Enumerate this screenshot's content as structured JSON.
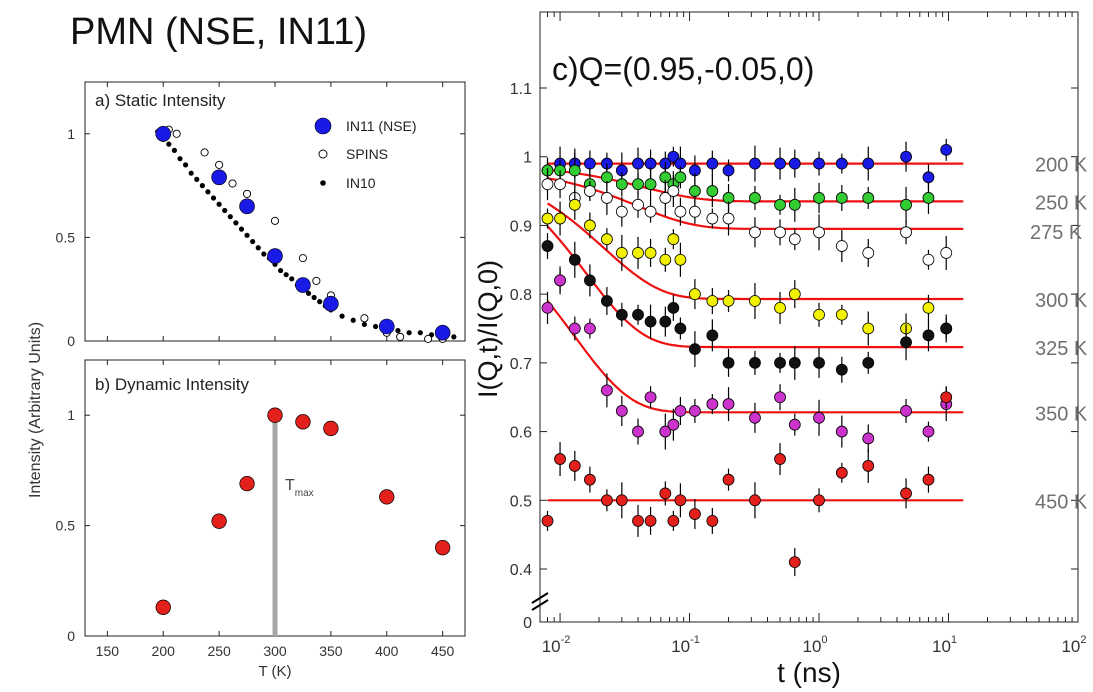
{
  "page_title": "PMN (NSE, IN11)",
  "left_shared_ylabel": "Intensity (Arbitrary Units)",
  "colors": {
    "in11_blue": "#1a1ae6",
    "red_points": "#e3201b",
    "fit_line": "#ee1111",
    "tmax_line": "#a6a6a6",
    "label_gray": "#707070"
  },
  "chart_data": [
    {
      "id": "a",
      "type": "scatter",
      "title": "a) Static Intensity",
      "xlabel": "",
      "ylabel": "",
      "xlim": [
        130,
        470
      ],
      "ylim": [
        0,
        1.25
      ],
      "yticks": [
        0,
        0.5,
        1
      ],
      "ytick_labels": [
        "0",
        "0.5",
        "1"
      ],
      "xticks": [
        150,
        200,
        250,
        300,
        350,
        400,
        450
      ],
      "legend_position": "top-right",
      "series": [
        {
          "name": "IN11 (NSE)",
          "marker": "large-filled-blue",
          "x": [
            200,
            250,
            275,
            300,
            325,
            350,
            400,
            450
          ],
          "y": [
            1.0,
            0.79,
            0.65,
            0.41,
            0.27,
            0.18,
            0.07,
            0.04
          ]
        },
        {
          "name": "SPINS",
          "marker": "open-circle",
          "x": [
            200,
            205,
            212,
            237,
            250,
            262,
            275,
            300,
            325,
            337,
            350,
            380,
            400,
            412,
            437,
            450
          ],
          "y": [
            0.98,
            1.02,
            1.0,
            0.91,
            0.85,
            0.76,
            0.71,
            0.58,
            0.4,
            0.29,
            0.22,
            0.11,
            0.04,
            0.02,
            0.01,
            0.01
          ]
        },
        {
          "name": "IN10",
          "marker": "small-dot",
          "x": [
            195,
            200,
            205,
            210,
            215,
            220,
            225,
            230,
            235,
            240,
            245,
            250,
            255,
            260,
            265,
            270,
            275,
            280,
            285,
            290,
            295,
            300,
            305,
            310,
            315,
            320,
            325,
            330,
            335,
            340,
            345,
            350,
            360,
            370,
            380,
            390,
            400,
            410,
            420,
            430,
            440,
            450,
            460
          ],
          "y": [
            1.01,
            0.98,
            0.95,
            0.92,
            0.88,
            0.85,
            0.81,
            0.78,
            0.75,
            0.72,
            0.69,
            0.66,
            0.63,
            0.6,
            0.57,
            0.54,
            0.51,
            0.48,
            0.45,
            0.42,
            0.4,
            0.37,
            0.34,
            0.32,
            0.3,
            0.27,
            0.25,
            0.23,
            0.21,
            0.19,
            0.17,
            0.15,
            0.12,
            0.1,
            0.08,
            0.07,
            0.06,
            0.05,
            0.04,
            0.04,
            0.03,
            0.02,
            0.02
          ]
        }
      ]
    },
    {
      "id": "b",
      "type": "scatter",
      "title": "b) Dynamic Intensity",
      "xlabel": "T (K)",
      "ylabel": "",
      "xlim": [
        130,
        470
      ],
      "ylim": [
        0,
        1.25
      ],
      "xticks": [
        150,
        200,
        250,
        300,
        350,
        400,
        450
      ],
      "xtick_labels": [
        "150",
        "200",
        "250",
        "300",
        "350",
        "400",
        "450"
      ],
      "yticks": [
        0,
        0.5,
        1
      ],
      "ytick_labels": [
        "0",
        "0.5",
        "1"
      ],
      "annotation": {
        "text": "T",
        "subscript": "max",
        "x": 300
      },
      "series": [
        {
          "name": "",
          "marker": "large-filled-red",
          "x": [
            200,
            250,
            275,
            300,
            325,
            350,
            400,
            450
          ],
          "y": [
            0.13,
            0.52,
            0.69,
            1.0,
            0.97,
            0.94,
            0.63,
            0.4
          ]
        }
      ]
    },
    {
      "id": "c",
      "type": "scatter",
      "title": "c)Q=(0.95,-0.05,0)",
      "xlabel": "t (ns)",
      "ylabel": "I(Q,t)/I(Q,0)",
      "xscale": "log",
      "xlim": [
        0.007,
        100
      ],
      "ylim": [
        0.3,
        1.15
      ],
      "xticks": [
        0.01,
        0.1,
        1,
        10,
        100
      ],
      "xtick_labels": [
        "10-2",
        "10-1",
        "100",
        "101",
        "102"
      ],
      "yticks": [
        0.4,
        0.5,
        0.6,
        0.7,
        0.8,
        0.9,
        1,
        1.1
      ],
      "ytick_labels": [
        "0.4",
        "0.5",
        "0.6",
        "0.7",
        "0.8",
        "0.9",
        "1",
        "1.1"
      ],
      "y_zero_label": "0",
      "axis_break": true,
      "x": [
        0.008,
        0.01,
        0.013,
        0.017,
        0.023,
        0.03,
        0.04,
        0.05,
        0.065,
        0.075,
        0.085,
        0.11,
        0.15,
        0.2,
        0.32,
        0.5,
        0.65,
        1.0,
        1.5,
        2.4,
        4.7,
        7.0,
        9.6
      ],
      "series": [
        {
          "name": "200 K",
          "face": "#1a1ae6",
          "x_index": [
            0,
            1,
            2,
            3,
            4,
            5,
            6,
            7,
            8,
            9,
            10,
            11,
            12,
            13,
            14,
            15,
            16,
            17,
            18,
            19,
            20,
            21,
            22
          ],
          "y": [
            0.98,
            0.99,
            0.99,
            0.99,
            0.99,
            0.98,
            0.99,
            0.99,
            0.99,
            1.0,
            0.99,
            0.98,
            0.99,
            0.98,
            0.99,
            0.99,
            0.99,
            0.99,
            0.99,
            0.99,
            1.0,
            0.97,
            1.01
          ],
          "fit": {
            "plateau": 0.99,
            "amplitude": 0.0,
            "tau": 0.05
          }
        },
        {
          "name": "250 K",
          "face": "#33cc33",
          "x_index": [
            0,
            1,
            2,
            3,
            4,
            5,
            6,
            7,
            8,
            9,
            10,
            11,
            12,
            13,
            14,
            15,
            16,
            17,
            18,
            19,
            20,
            21
          ],
          "y": [
            0.98,
            0.98,
            0.98,
            0.96,
            0.97,
            0.96,
            0.96,
            0.96,
            0.97,
            0.96,
            0.97,
            0.95,
            0.95,
            0.94,
            0.94,
            0.93,
            0.93,
            0.94,
            0.94,
            0.94,
            0.93,
            0.94
          ],
          "fit": {
            "plateau": 0.935,
            "amplitude": 0.055,
            "tau": 0.045
          }
        },
        {
          "name": "275 K",
          "face": "#ffffff",
          "x_index": [
            0,
            1,
            2,
            3,
            4,
            5,
            6,
            7,
            8,
            9,
            10,
            11,
            12,
            13,
            14,
            15,
            16,
            17,
            18,
            19,
            20,
            21,
            22
          ],
          "y": [
            0.96,
            0.96,
            0.94,
            0.95,
            0.94,
            0.92,
            0.93,
            0.92,
            0.94,
            0.95,
            0.92,
            0.92,
            0.91,
            0.91,
            0.89,
            0.89,
            0.88,
            0.89,
            0.87,
            0.86,
            0.89,
            0.85,
            0.86
          ],
          "fit": {
            "plateau": 0.895,
            "amplitude": 0.09,
            "tau": 0.04
          }
        },
        {
          "name": "300 K",
          "face": "#f2f200",
          "x_index": [
            0,
            1,
            2,
            3,
            4,
            5,
            6,
            7,
            8,
            9,
            10,
            11,
            12,
            13,
            14,
            15,
            16,
            17,
            18,
            19,
            20,
            21,
            22
          ],
          "y": [
            0.91,
            0.91,
            0.93,
            0.9,
            0.88,
            0.86,
            0.86,
            0.86,
            0.85,
            0.88,
            0.85,
            0.8,
            0.79,
            0.79,
            0.79,
            0.78,
            0.8,
            0.77,
            0.77,
            0.75,
            0.75,
            0.78,
            0.75
          ],
          "fit": {
            "plateau": 0.793,
            "amplitude": 0.2,
            "tau": 0.022
          }
        },
        {
          "name": "325 K",
          "face": "#111111",
          "x_index": [
            0,
            1,
            2,
            3,
            4,
            5,
            6,
            7,
            8,
            9,
            10,
            11,
            12,
            13,
            14,
            15,
            16,
            17,
            18,
            19,
            20,
            21,
            22
          ],
          "y": [
            0.87,
            0.82,
            0.85,
            0.82,
            0.79,
            0.77,
            0.77,
            0.76,
            0.76,
            0.78,
            0.75,
            0.72,
            0.74,
            0.7,
            0.7,
            0.7,
            0.7,
            0.7,
            0.69,
            0.7,
            0.73,
            0.74,
            0.75
          ],
          "fit": {
            "plateau": 0.723,
            "amplitude": 0.29,
            "tau": 0.016
          }
        },
        {
          "name": "350 K",
          "face": "#cc33cc",
          "x_index": [
            0,
            1,
            2,
            3,
            4,
            5,
            6,
            7,
            8,
            9,
            10,
            11,
            12,
            13,
            14,
            15,
            16,
            17,
            18,
            19,
            20,
            21,
            22
          ],
          "y": [
            0.78,
            0.82,
            0.75,
            0.75,
            0.66,
            0.63,
            0.6,
            0.65,
            0.6,
            0.61,
            0.63,
            0.63,
            0.64,
            0.64,
            0.62,
            0.65,
            0.61,
            0.62,
            0.6,
            0.59,
            0.63,
            0.6,
            0.64
          ],
          "fit": {
            "plateau": 0.628,
            "amplitude": 0.3,
            "tau": 0.013
          }
        },
        {
          "name": "450 K",
          "face": "#e3201b",
          "x_index": [
            0,
            1,
            2,
            3,
            4,
            5,
            6,
            7,
            8,
            9,
            10,
            11,
            12,
            13,
            14,
            15,
            16,
            17,
            18,
            19,
            20,
            21,
            22
          ],
          "y": [
            0.47,
            0.56,
            0.55,
            0.53,
            0.5,
            0.5,
            0.47,
            0.47,
            0.51,
            0.47,
            0.5,
            0.48,
            0.47,
            0.53,
            0.5,
            0.56,
            0.41,
            0.5,
            0.54,
            0.55,
            0.51,
            0.53,
            0.65
          ],
          "fit": {
            "plateau": 0.5,
            "amplitude": 0.0,
            "tau": 0.05
          }
        }
      ]
    }
  ]
}
